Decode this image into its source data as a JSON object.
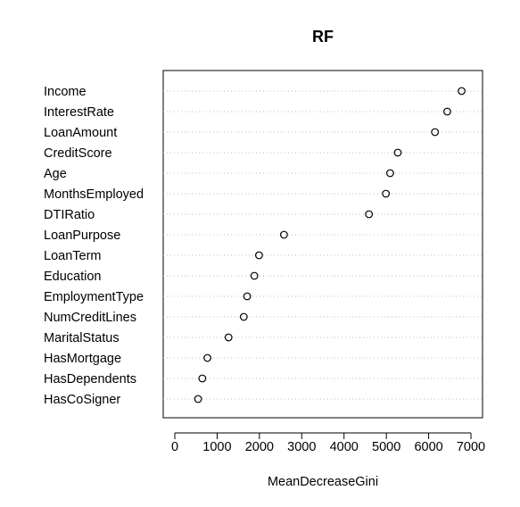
{
  "chart_data": {
    "type": "scatter",
    "title": "RF",
    "xlabel": "MeanDecreaseGini",
    "ylabel": "",
    "xlim": [
      0,
      7000
    ],
    "xticks": [
      0,
      1000,
      2000,
      3000,
      4000,
      5000,
      6000,
      7000
    ],
    "grid": "dotted horizontal",
    "categories": [
      "Income",
      "InterestRate",
      "LoanAmount",
      "CreditScore",
      "Age",
      "MonthsEmployed",
      "DTIRatio",
      "LoanPurpose",
      "LoanTerm",
      "Education",
      "EmploymentType",
      "NumCreditLines",
      "MaritalStatus",
      "HasMortgage",
      "HasDependents",
      "HasCoSigner"
    ],
    "values": [
      6780,
      6440,
      6150,
      5270,
      5090,
      4990,
      4590,
      2580,
      1990,
      1880,
      1710,
      1630,
      1270,
      770,
      650,
      550
    ],
    "colors": {
      "marker_stroke": "#000000",
      "grid": "#bebebe",
      "axis": "#000000"
    }
  }
}
